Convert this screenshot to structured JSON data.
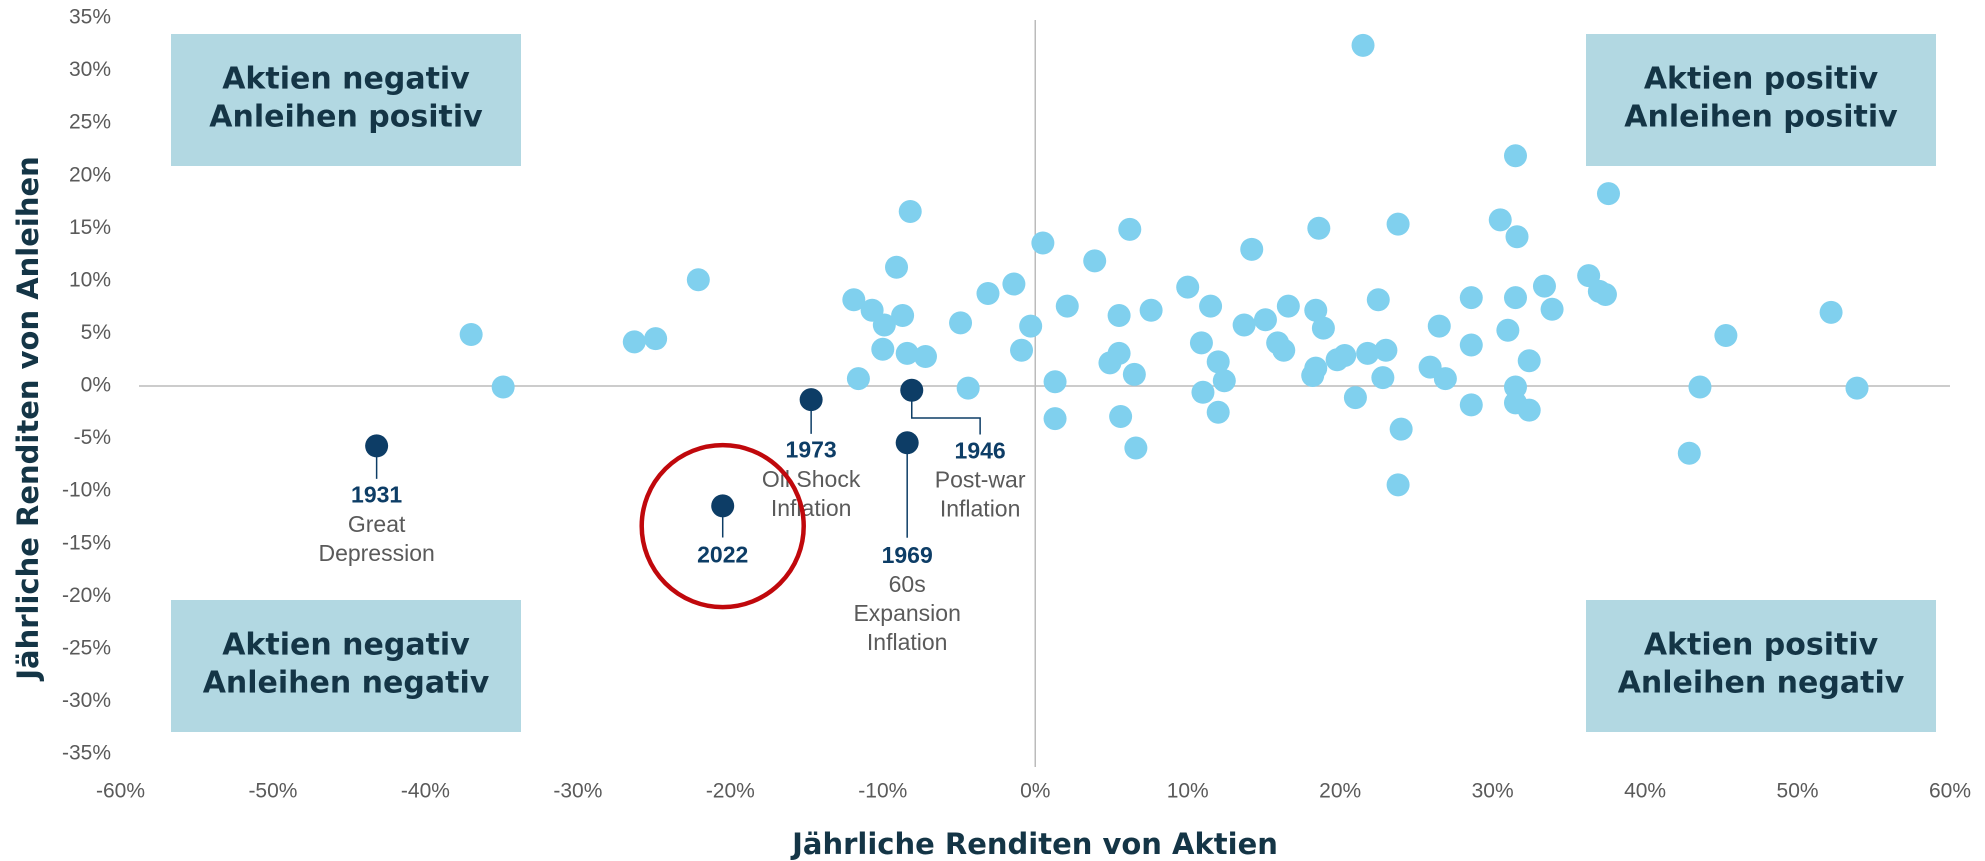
{
  "chart_data": {
    "type": "scatter",
    "xlabel": "Jährliche Renditen von Aktien",
    "ylabel": "Jährliche Renditen von Anleihen",
    "xlim": [
      -60,
      60
    ],
    "ylim": [
      -35,
      35
    ],
    "xticks": [
      {
        "value": -60,
        "label": "-60%"
      },
      {
        "value": -50,
        "label": "-50%"
      },
      {
        "value": -40,
        "label": "-40%"
      },
      {
        "value": -30,
        "label": "-30%"
      },
      {
        "value": -20,
        "label": "-20%"
      },
      {
        "value": -10,
        "label": "-10%"
      },
      {
        "value": 0,
        "label": "0%"
      },
      {
        "value": 10,
        "label": "10%"
      },
      {
        "value": 20,
        "label": "20%"
      },
      {
        "value": 30,
        "label": "30%"
      },
      {
        "value": 40,
        "label": "40%"
      },
      {
        "value": 50,
        "label": "50%"
      },
      {
        "value": 60,
        "label": "60%"
      }
    ],
    "yticks": [
      {
        "value": 35,
        "label": "35%"
      },
      {
        "value": 30,
        "label": "30%"
      },
      {
        "value": 25,
        "label": "25%"
      },
      {
        "value": 20,
        "label": "20%"
      },
      {
        "value": 15,
        "label": "15%"
      },
      {
        "value": 10,
        "label": "10%"
      },
      {
        "value": 5,
        "label": "5%"
      },
      {
        "value": 0,
        "label": "0%"
      },
      {
        "value": -5,
        "label": "-5%"
      },
      {
        "value": -10,
        "label": "-10%"
      },
      {
        "value": -15,
        "label": "-15%"
      },
      {
        "value": -20,
        "label": "-20%"
      },
      {
        "value": -25,
        "label": "-25%"
      },
      {
        "value": -30,
        "label": "-30%"
      },
      {
        "value": -35,
        "label": "-35%"
      }
    ],
    "series": [
      {
        "color": "#80d0ee",
        "x": [
          -37.0,
          -34.9,
          -26.3,
          -24.9,
          -22.1,
          -11.9,
          -10.7,
          -11.6,
          -9.9,
          -10.0,
          -9.1,
          -8.7,
          -8.4,
          -8.2,
          -7.2,
          -4.9,
          -4.4,
          -3.1,
          -1.4,
          -0.9,
          -0.3,
          0.5,
          1.3,
          1.3,
          2.1,
          3.9,
          4.9,
          5.5,
          5.5,
          5.6,
          6.2,
          6.5,
          6.6,
          7.6,
          10.0,
          10.9,
          11.0,
          11.5,
          12.0,
          12.0,
          12.4,
          13.7,
          14.2,
          15.1,
          15.9,
          16.3,
          16.6,
          18.2,
          18.4,
          18.4,
          18.6,
          18.9,
          19.8,
          20.3,
          21.0,
          21.5,
          21.8,
          22.5,
          22.8,
          23.0,
          23.8,
          24.0,
          23.8,
          25.9,
          26.5,
          26.9,
          28.6,
          28.6,
          28.6,
          30.5,
          31.0,
          31.5,
          31.5,
          31.5,
          31.5,
          31.6,
          32.4,
          32.4,
          33.4,
          33.9,
          36.3,
          37.0,
          37.4,
          37.6,
          42.9,
          43.6,
          45.3,
          52.2,
          53.9
        ],
        "values": [
          4.9,
          -0.1,
          4.2,
          4.5,
          10.1,
          8.2,
          7.2,
          0.7,
          5.8,
          3.5,
          11.3,
          6.7,
          3.1,
          16.6,
          2.8,
          6.0,
          -0.2,
          8.8,
          9.7,
          3.4,
          5.7,
          13.6,
          0.4,
          -3.1,
          7.6,
          11.9,
          2.2,
          6.7,
          3.1,
          -2.9,
          14.9,
          1.1,
          -5.9,
          7.2,
          9.4,
          4.1,
          -0.6,
          7.6,
          2.3,
          -2.5,
          0.5,
          5.8,
          13.0,
          6.3,
          4.1,
          3.4,
          7.6,
          1.0,
          1.7,
          7.2,
          15.0,
          5.5,
          2.5,
          2.9,
          -1.1,
          32.4,
          3.1,
          8.2,
          0.8,
          3.4,
          15.4,
          -4.1,
          -9.4,
          1.8,
          5.7,
          0.7,
          8.4,
          3.9,
          -1.8,
          15.8,
          5.3,
          21.9,
          -0.1,
          -1.6,
          8.4,
          14.2,
          -2.3,
          2.4,
          9.5,
          7.3,
          10.5,
          9.0,
          8.7,
          18.3,
          -6.4,
          -0.1,
          4.8,
          7.0,
          -0.2
        ]
      },
      {
        "color": "#0d3d66",
        "x": [
          -43.2,
          -20.5,
          -14.7,
          -8.1,
          -8.4
        ],
        "values": [
          -5.7,
          -11.4,
          -1.3,
          -0.4,
          -5.4
        ]
      }
    ],
    "annotations": [
      {
        "label": "1931",
        "lines": [
          "Great",
          "Depression"
        ]
      },
      {
        "label": "2022"
      },
      {
        "label": "1973",
        "lines": [
          "Oil Shock",
          "Inflation"
        ]
      },
      {
        "label": "1946",
        "lines": [
          "Post-war",
          "Inflation"
        ]
      },
      {
        "label": "1969",
        "lines": [
          "60s",
          "Expansion",
          "Inflation"
        ]
      }
    ],
    "highlight_color": "#c0080c",
    "quadrant_color": "#b2d8e2",
    "quadrants": [
      {
        "corner": "top-left",
        "lines": [
          "Aktien negativ",
          "Anleihen positiv"
        ]
      },
      {
        "corner": "top-right",
        "lines": [
          "Aktien positiv",
          "Anleihen positiv"
        ]
      },
      {
        "corner": "bottom-left",
        "lines": [
          "Aktien negativ",
          "Anleihen negativ"
        ]
      },
      {
        "corner": "bottom-right",
        "lines": [
          "Aktien positiv",
          "Anleihen negativ"
        ]
      }
    ]
  }
}
